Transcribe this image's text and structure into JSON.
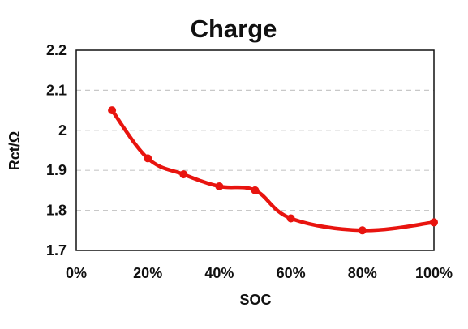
{
  "chart_data": {
    "type": "line",
    "title": "Charge",
    "xlabel": "SOC",
    "ylabel": "Rct/Ω",
    "x_ticks": [
      "0%",
      "20%",
      "40%",
      "60%",
      "80%",
      "100%"
    ],
    "y_ticks": [
      "1.7",
      "1.8",
      "1.9",
      "2",
      "2.1",
      "2.2"
    ],
    "xlim": [
      0,
      100
    ],
    "ylim": [
      1.7,
      2.2
    ],
    "grid": "horizontal-dashed",
    "line_color": "#e8140f",
    "series": [
      {
        "x": [
          10,
          20,
          30,
          40,
          50,
          60,
          80,
          100
        ],
        "values": [
          2.05,
          1.93,
          1.89,
          1.86,
          1.85,
          1.78,
          1.75,
          1.77
        ]
      }
    ]
  }
}
